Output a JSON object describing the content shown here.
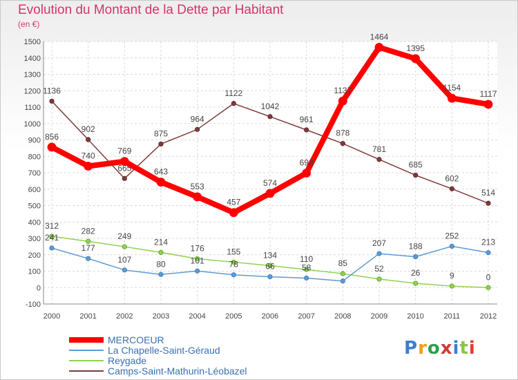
{
  "chart_data": {
    "type": "line",
    "title": "Evolution du Montant de la Dette par Habitant",
    "subtitle": "(en €)",
    "x": [
      "2000",
      "2001",
      "2002",
      "2003",
      "2004",
      "2005",
      "2006",
      "2007",
      "2008",
      "2009",
      "2010",
      "2011",
      "2012"
    ],
    "ylim": [
      -100,
      1500
    ],
    "yticks": [
      "-100",
      "0",
      "100",
      "200",
      "300",
      "400",
      "500",
      "600",
      "700",
      "800",
      "900",
      "1000",
      "1100",
      "1200",
      "1300",
      "1400",
      "1500"
    ],
    "grid": true,
    "legend_position": "bottom-left",
    "series": [
      {
        "name": "MERCOEUR",
        "color": "#ff0000",
        "values": [
          856,
          740,
          769,
          643,
          553,
          457,
          574,
          698,
          1137,
          1464,
          1395,
          1154,
          1117
        ],
        "labels": [
          "856",
          "740",
          "769",
          "643",
          "553",
          "457",
          "574",
          "698",
          "1137",
          "1464",
          "1395",
          "1154",
          "1117"
        ]
      },
      {
        "name": "La Chapelle-Saint-Géraud",
        "color": "#5b9bd5",
        "values": [
          241,
          177,
          107,
          80,
          101,
          78,
          66,
          58,
          40,
          207,
          188,
          252,
          213
        ],
        "labels": [
          "241",
          "177",
          "107",
          "80",
          "101",
          "78",
          "66",
          "58",
          "",
          "207",
          "188",
          "252",
          "213"
        ]
      },
      {
        "name": "Reygade",
        "color": "#8fd14f",
        "values": [
          312,
          282,
          249,
          214,
          176,
          155,
          134,
          110,
          85,
          52,
          26,
          9,
          0
        ],
        "labels": [
          "312",
          "282",
          "249",
          "214",
          "176",
          "155",
          "134",
          "110",
          "85",
          "52",
          "26",
          "9",
          "0"
        ]
      },
      {
        "name": "Camps-Saint-Mathurin-Léobazel",
        "color": "#7f3b3b",
        "values": [
          1136,
          902,
          665,
          875,
          964,
          1122,
          1042,
          961,
          878,
          781,
          685,
          602,
          514
        ],
        "labels": [
          "1136",
          "902",
          "665",
          "875",
          "964",
          "1122",
          "1042",
          "961",
          "878",
          "781",
          "685",
          "602",
          "514"
        ]
      }
    ]
  },
  "logo": {
    "text": "Proxiti"
  }
}
